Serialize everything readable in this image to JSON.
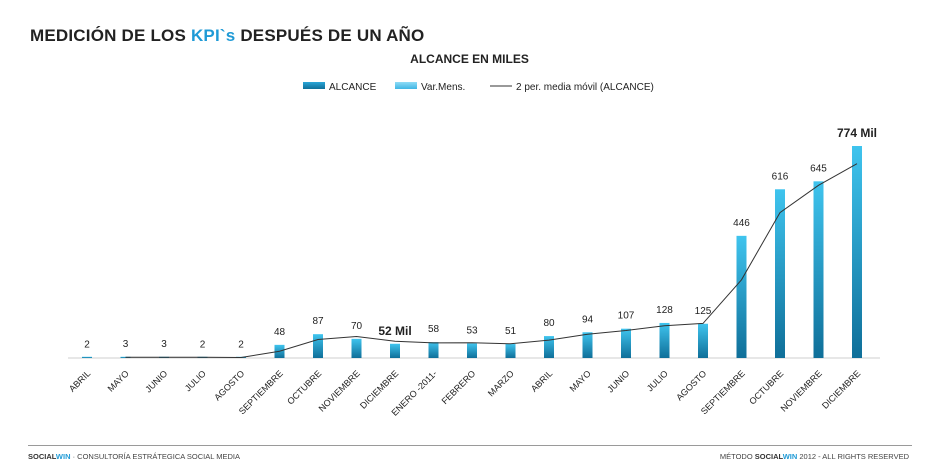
{
  "header": {
    "title_prefix": "MEDICIÓN DE LOS ",
    "title_highlight": "KPI`s",
    "title_suffix": " DESPUÉS DE UN AÑO"
  },
  "footer": {
    "left_brand_a": "SOCIAL",
    "left_brand_b": "WIN",
    "left_text": " · CONSULTORÍA ESTRÁTEGICA SOCIAL MEDIA",
    "right_prefix": "MÉTODO ",
    "right_brand_a": "SOCIAL",
    "right_brand_b": "WIN",
    "right_text": " 2012 - ALL RIGHTS RESERVED"
  },
  "colors": {
    "accent": "#1f9ad6",
    "bar_top": "#3fc4ee",
    "bar_bottom": "#0f6f99",
    "line": "#333333"
  },
  "chart_data": {
    "type": "bar",
    "title": "ALCANCE EN MILES",
    "legend_position": "top",
    "grid": false,
    "legend": [
      "ALCANCE",
      "Var.Mens.",
      "2 per. media móvil (ALCANCE)"
    ],
    "categories": [
      "ABRIL",
      "MAYO",
      "JUNIO",
      "JULIO",
      "AGOSTO",
      "SEPTIEMBRE",
      "OCTUBRE",
      "NOVIEMBRE",
      "DICIEMBRE",
      "ENERO -2011-",
      "FEBRERO",
      "MARZO",
      "ABRIL",
      "MAYO",
      "JUNIO",
      "JULIO",
      "AGOSTO",
      "SEPTIEMBRE",
      "OCTUBRE",
      "NOVIEMBRE",
      "DICIEMBRE"
    ],
    "values": [
      2,
      3,
      3,
      2,
      2,
      48,
      87,
      70,
      52,
      58,
      53,
      51,
      80,
      94,
      107,
      128,
      125,
      446,
      616,
      645,
      774
    ],
    "data_labels": [
      "2",
      "3",
      "3",
      "2",
      "2",
      "48",
      "87",
      "70",
      "52 Mil",
      "58",
      "53",
      "51",
      "80",
      "94",
      "107",
      "128",
      "125",
      "446",
      "616",
      "645",
      "774 Mil"
    ],
    "emphasized_labels": [
      8,
      20
    ],
    "ylim": [
      0,
      774
    ],
    "moving_average_period": 2
  }
}
